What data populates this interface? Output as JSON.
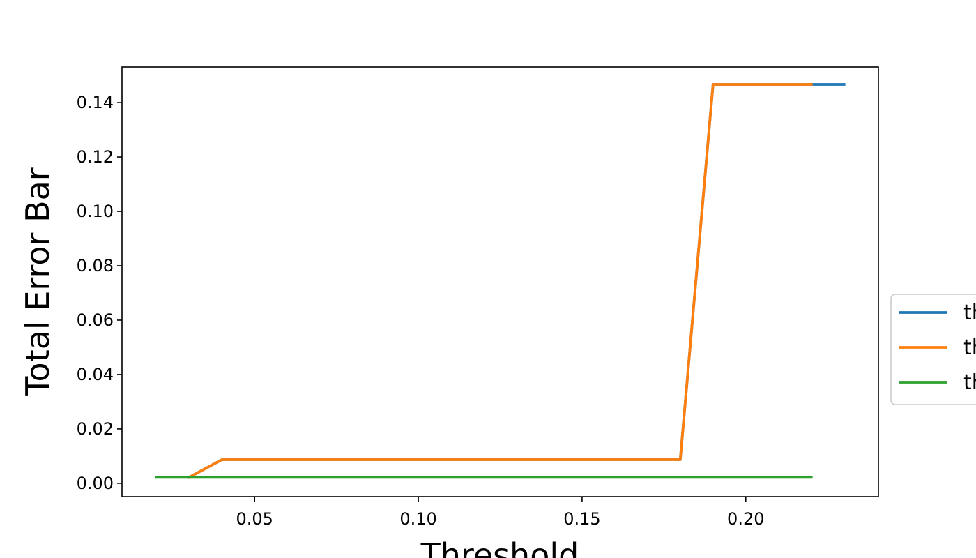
{
  "chart_data": {
    "type": "line",
    "title": "",
    "xlabel": "Threshold",
    "ylabel": "Total Error Bar",
    "xlim": [
      0.0095,
      0.2405
    ],
    "ylim": [
      -0.0049,
      0.1531
    ],
    "xticks": [
      0.05,
      0.1,
      0.15,
      0.2
    ],
    "xtick_labels": [
      "0.05",
      "0.10",
      "0.15",
      "0.20"
    ],
    "yticks": [
      0.0,
      0.02,
      0.04,
      0.06,
      0.08,
      0.1,
      0.12,
      0.14
    ],
    "ytick_labels": [
      "0.00",
      "0.02",
      "0.04",
      "0.06",
      "0.08",
      "0.10",
      "0.12",
      "0.14"
    ],
    "grid": false,
    "legend_position": "center-right, outside axes (clipped)",
    "series": [
      {
        "name": "th",
        "color": "#1f77b4",
        "x": [
          0.03,
          0.04,
          0.05,
          0.06,
          0.07,
          0.08,
          0.09,
          0.1,
          0.11,
          0.12,
          0.13,
          0.14,
          0.15,
          0.16,
          0.17,
          0.18,
          0.19,
          0.2,
          0.21,
          0.22,
          0.23
        ],
        "y": [
          0.0022,
          0.0087,
          0.0087,
          0.0087,
          0.0087,
          0.0087,
          0.0087,
          0.0087,
          0.0087,
          0.0087,
          0.0087,
          0.0087,
          0.0087,
          0.0087,
          0.0087,
          0.0087,
          0.1467,
          0.1467,
          0.1467,
          0.1467,
          0.1467
        ]
      },
      {
        "name": "th",
        "color": "#ff7f0e",
        "x": [
          0.03,
          0.04,
          0.05,
          0.06,
          0.07,
          0.08,
          0.09,
          0.1,
          0.11,
          0.12,
          0.13,
          0.14,
          0.15,
          0.16,
          0.17,
          0.18,
          0.19,
          0.2,
          0.21,
          0.22
        ],
        "y": [
          0.0022,
          0.0087,
          0.0087,
          0.0087,
          0.0087,
          0.0087,
          0.0087,
          0.0087,
          0.0087,
          0.0087,
          0.0087,
          0.0087,
          0.0087,
          0.0087,
          0.0087,
          0.0087,
          0.1467,
          0.1467,
          0.1467,
          0.1467
        ]
      },
      {
        "name": "th",
        "color": "#2ca02c",
        "x": [
          0.02,
          0.03,
          0.04,
          0.05,
          0.06,
          0.07,
          0.08,
          0.09,
          0.1,
          0.11,
          0.12,
          0.13,
          0.14,
          0.15,
          0.16,
          0.17,
          0.18,
          0.19,
          0.2,
          0.21,
          0.22
        ],
        "y": [
          0.0022,
          0.0022,
          0.0022,
          0.0022,
          0.0022,
          0.0022,
          0.0022,
          0.0022,
          0.0022,
          0.0022,
          0.0022,
          0.0022,
          0.0022,
          0.0022,
          0.0022,
          0.0022,
          0.0022,
          0.0022,
          0.0022,
          0.0022,
          0.0022
        ]
      }
    ]
  }
}
